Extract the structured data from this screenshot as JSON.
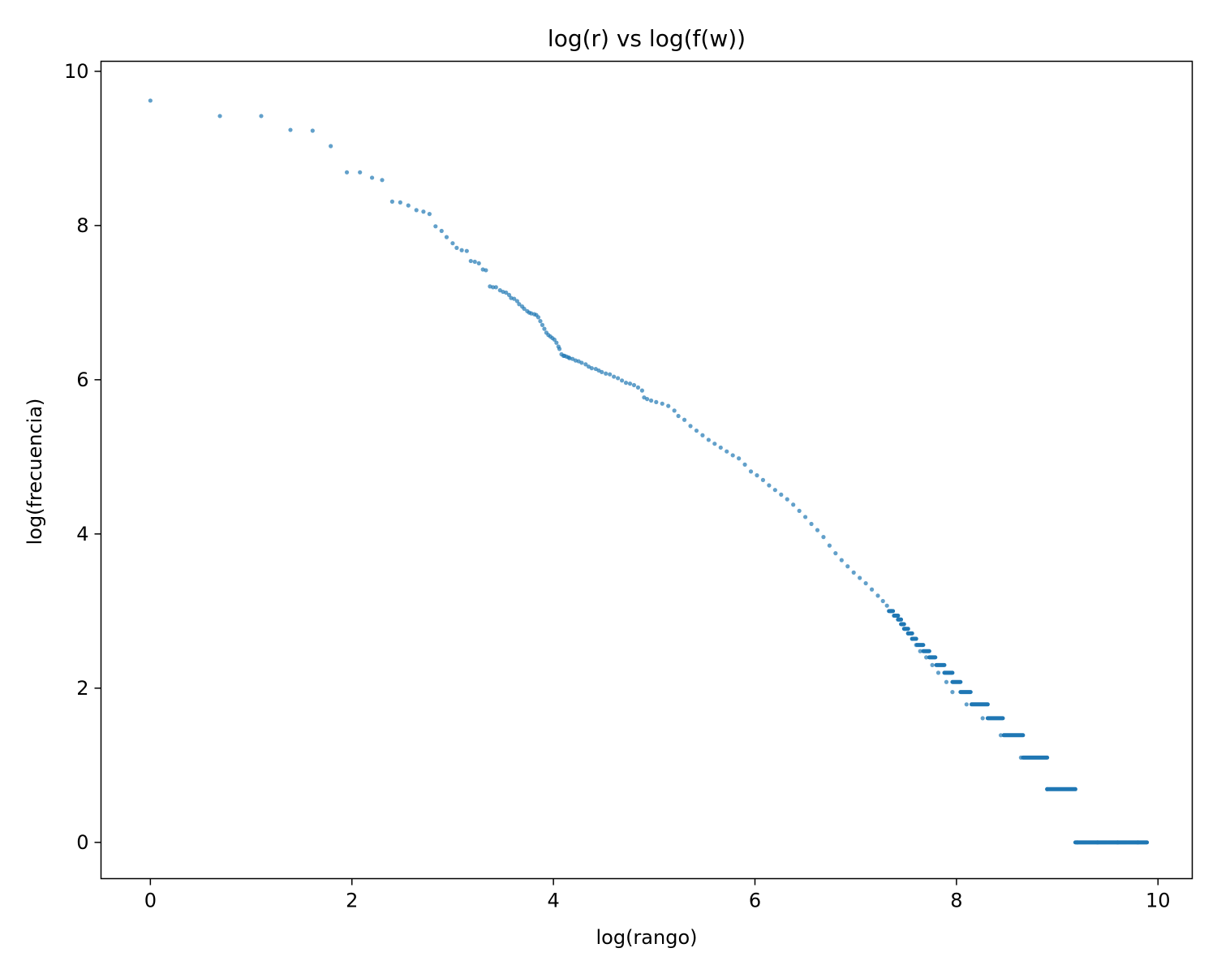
{
  "chart_data": {
    "type": "scatter",
    "title": "log(r) vs log(f(w))",
    "xlabel": "log(rango)",
    "ylabel": "log(frecuencia)",
    "xlim": [
      -0.49,
      10.34
    ],
    "ylim": [
      -0.47,
      10.13
    ],
    "xticks": [
      0,
      2,
      4,
      6,
      8,
      10
    ],
    "yticks": [
      0,
      2,
      4,
      6,
      8,
      10
    ],
    "grid": false,
    "series": [
      {
        "color": "#1f77b4",
        "points": [
          [
            0.0,
            9.62
          ],
          [
            0.69,
            9.42
          ],
          [
            1.1,
            9.42
          ],
          [
            1.39,
            9.24
          ],
          [
            1.61,
            9.23
          ],
          [
            1.79,
            9.03
          ],
          [
            1.95,
            8.69
          ],
          [
            2.08,
            8.69
          ],
          [
            2.2,
            8.62
          ],
          [
            2.3,
            8.59
          ],
          [
            2.4,
            8.31
          ],
          [
            2.48,
            8.3
          ],
          [
            2.56,
            8.26
          ],
          [
            2.64,
            8.2
          ],
          [
            2.71,
            8.18
          ],
          [
            2.77,
            8.15
          ],
          [
            2.83,
            7.99
          ],
          [
            2.89,
            7.93
          ],
          [
            2.94,
            7.85
          ],
          [
            3.0,
            7.77
          ],
          [
            3.04,
            7.71
          ],
          [
            3.09,
            7.68
          ],
          [
            3.14,
            7.67
          ],
          [
            3.18,
            7.54
          ],
          [
            3.22,
            7.53
          ],
          [
            3.26,
            7.51
          ],
          [
            3.3,
            7.43
          ],
          [
            3.33,
            7.42
          ],
          [
            3.37,
            7.21
          ],
          [
            3.4,
            7.2
          ],
          [
            3.43,
            7.2
          ],
          [
            3.47,
            7.16
          ],
          [
            3.5,
            7.14
          ],
          [
            3.53,
            7.13
          ],
          [
            3.56,
            7.1
          ],
          [
            3.58,
            7.06
          ],
          [
            3.61,
            7.05
          ],
          [
            3.64,
            7.02
          ],
          [
            3.66,
            6.98
          ],
          [
            3.69,
            6.95
          ],
          [
            3.71,
            6.92
          ],
          [
            3.74,
            6.89
          ],
          [
            3.76,
            6.87
          ],
          [
            3.78,
            6.86
          ],
          [
            3.81,
            6.85
          ],
          [
            3.83,
            6.84
          ],
          [
            3.85,
            6.81
          ],
          [
            3.87,
            6.76
          ],
          [
            3.89,
            6.71
          ],
          [
            3.91,
            6.66
          ],
          [
            3.93,
            6.61
          ],
          [
            3.95,
            6.58
          ],
          [
            3.97,
            6.56
          ],
          [
            3.99,
            6.54
          ],
          [
            4.01,
            6.52
          ],
          [
            4.03,
            6.48
          ],
          [
            4.05,
            6.43
          ],
          [
            4.06,
            6.4
          ],
          [
            4.08,
            6.33
          ],
          [
            4.1,
            6.31
          ],
          [
            4.11,
            6.31
          ],
          [
            4.13,
            6.3
          ],
          [
            4.15,
            6.29
          ],
          [
            4.16,
            6.28
          ],
          [
            4.19,
            6.27
          ],
          [
            4.22,
            6.25
          ],
          [
            4.25,
            6.24
          ],
          [
            4.28,
            6.22
          ],
          [
            4.32,
            6.2
          ],
          [
            4.35,
            6.17
          ],
          [
            4.38,
            6.15
          ],
          [
            4.42,
            6.14
          ],
          [
            4.45,
            6.12
          ],
          [
            4.48,
            6.1
          ],
          [
            4.52,
            6.08
          ],
          [
            4.56,
            6.07
          ],
          [
            4.6,
            6.04
          ],
          [
            4.64,
            6.02
          ],
          [
            4.68,
            5.99
          ],
          [
            4.72,
            5.96
          ],
          [
            4.76,
            5.95
          ],
          [
            4.8,
            5.93
          ],
          [
            4.84,
            5.9
          ],
          [
            4.88,
            5.86
          ],
          [
            4.9,
            5.77
          ],
          [
            4.93,
            5.75
          ],
          [
            4.97,
            5.73
          ],
          [
            5.02,
            5.71
          ],
          [
            5.08,
            5.69
          ],
          [
            5.14,
            5.66
          ],
          [
            5.2,
            5.6
          ],
          [
            5.24,
            5.53
          ],
          [
            5.3,
            5.48
          ],
          [
            5.36,
            5.4
          ],
          [
            5.42,
            5.34
          ],
          [
            5.48,
            5.28
          ],
          [
            5.54,
            5.22
          ],
          [
            5.6,
            5.17
          ],
          [
            5.66,
            5.12
          ],
          [
            5.72,
            5.07
          ],
          [
            5.78,
            5.02
          ],
          [
            5.84,
            4.98
          ],
          [
            5.9,
            4.9
          ],
          [
            5.96,
            4.81
          ],
          [
            6.02,
            4.76
          ],
          [
            6.08,
            4.7
          ],
          [
            6.14,
            4.63
          ],
          [
            6.2,
            4.57
          ],
          [
            6.26,
            4.51
          ],
          [
            6.32,
            4.45
          ],
          [
            6.38,
            4.38
          ],
          [
            6.44,
            4.3
          ],
          [
            6.5,
            4.22
          ],
          [
            6.56,
            4.13
          ],
          [
            6.62,
            4.05
          ],
          [
            6.68,
            3.96
          ],
          [
            6.74,
            3.85
          ],
          [
            6.8,
            3.75
          ],
          [
            6.86,
            3.66
          ],
          [
            6.92,
            3.58
          ],
          [
            6.98,
            3.5
          ],
          [
            7.04,
            3.43
          ],
          [
            7.1,
            3.36
          ],
          [
            7.16,
            3.28
          ],
          [
            7.22,
            3.2
          ],
          [
            7.27,
            3.13
          ],
          [
            7.31,
            3.07
          ],
          [
            7.35,
            3.0
          ],
          [
            7.39,
            2.94
          ],
          [
            7.43,
            2.89
          ],
          [
            7.46,
            2.83
          ],
          [
            7.49,
            2.77
          ],
          [
            7.52,
            2.71
          ],
          [
            7.56,
            2.64
          ],
          [
            7.6,
            2.56
          ],
          [
            7.64,
            2.48
          ],
          [
            7.7,
            2.4
          ],
          [
            7.76,
            2.3
          ],
          [
            7.82,
            2.2
          ],
          [
            7.9,
            2.08
          ],
          [
            7.96,
            1.95
          ],
          [
            8.1,
            1.79
          ],
          [
            8.26,
            1.61
          ],
          [
            8.44,
            1.39
          ],
          [
            8.64,
            1.1
          ],
          [
            8.9,
            0.69
          ],
          [
            9.2,
            0.0
          ],
          [
            9.4,
            0.0
          ],
          [
            9.6,
            0.0
          ],
          [
            9.8,
            0.0
          ]
        ]
      }
    ],
    "plateaus": [
      {
        "y": 3.0,
        "x_start": 7.33,
        "x_end": 7.37
      },
      {
        "y": 2.94,
        "x_start": 7.38,
        "x_end": 7.42
      },
      {
        "y": 2.89,
        "x_start": 7.42,
        "x_end": 7.45
      },
      {
        "y": 2.83,
        "x_start": 7.45,
        "x_end": 7.48
      },
      {
        "y": 2.77,
        "x_start": 7.48,
        "x_end": 7.52
      },
      {
        "y": 2.71,
        "x_start": 7.52,
        "x_end": 7.56
      },
      {
        "y": 2.64,
        "x_start": 7.56,
        "x_end": 7.6
      },
      {
        "y": 2.56,
        "x_start": 7.61,
        "x_end": 7.67
      },
      {
        "y": 2.48,
        "x_start": 7.67,
        "x_end": 7.73
      },
      {
        "y": 2.4,
        "x_start": 7.73,
        "x_end": 7.79
      },
      {
        "y": 2.3,
        "x_start": 7.8,
        "x_end": 7.88
      },
      {
        "y": 2.2,
        "x_start": 7.88,
        "x_end": 7.96
      },
      {
        "y": 2.08,
        "x_start": 7.96,
        "x_end": 8.04
      },
      {
        "y": 1.95,
        "x_start": 8.04,
        "x_end": 8.14
      },
      {
        "y": 1.79,
        "x_start": 8.15,
        "x_end": 8.31
      },
      {
        "y": 1.61,
        "x_start": 8.31,
        "x_end": 8.46
      },
      {
        "y": 1.39,
        "x_start": 8.47,
        "x_end": 8.66
      },
      {
        "y": 1.1,
        "x_start": 8.66,
        "x_end": 8.9
      },
      {
        "y": 0.69,
        "x_start": 8.9,
        "x_end": 9.18
      },
      {
        "y": 0.0,
        "x_start": 9.18,
        "x_end": 9.89
      }
    ]
  }
}
